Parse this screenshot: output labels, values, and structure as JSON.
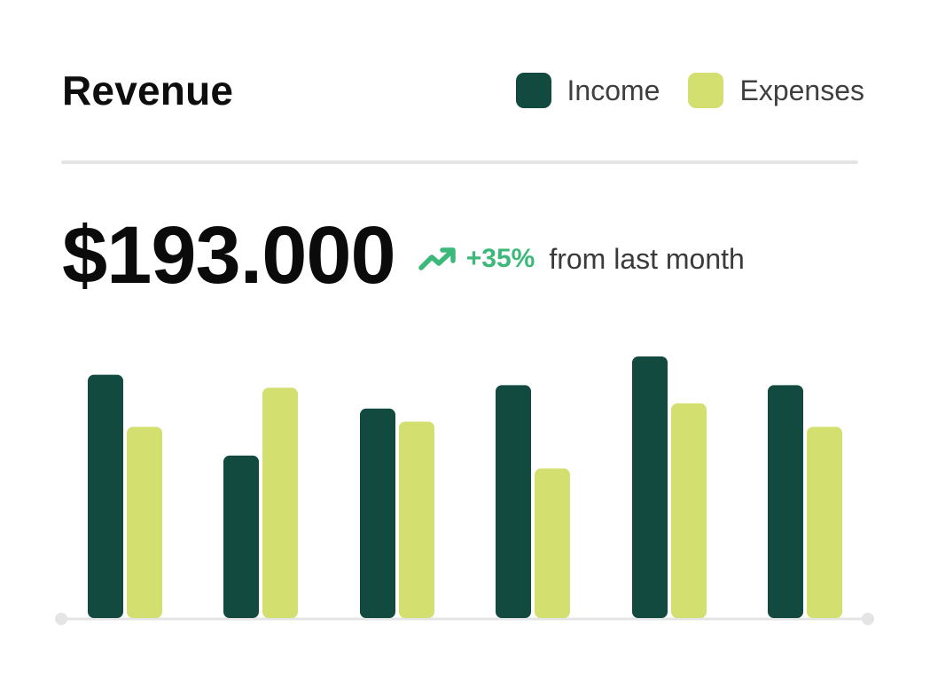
{
  "header": {
    "title": "Revenue"
  },
  "legend": {
    "income_label": "Income",
    "expenses_label": "Expenses"
  },
  "summary": {
    "value": "$193.000",
    "change_percent": "+35%",
    "change_text": "from last month",
    "trend_icon": "trending-up-icon"
  },
  "colors": {
    "income": "#124a40",
    "expenses": "#d3e06f",
    "positive": "#3cb87a",
    "baseline": "#e4e4e4"
  },
  "chart_data": {
    "type": "bar",
    "title": "Revenue",
    "categories": [
      "",
      "",
      "",
      "",
      "",
      ""
    ],
    "series": [
      {
        "name": "Income",
        "values": [
          93,
          62,
          80,
          89,
          100,
          89
        ]
      },
      {
        "name": "Expenses",
        "values": [
          73,
          88,
          75,
          57,
          82,
          73
        ]
      }
    ],
    "ylim": [
      0,
      100
    ],
    "grid": false,
    "legend_position": "top-right"
  }
}
